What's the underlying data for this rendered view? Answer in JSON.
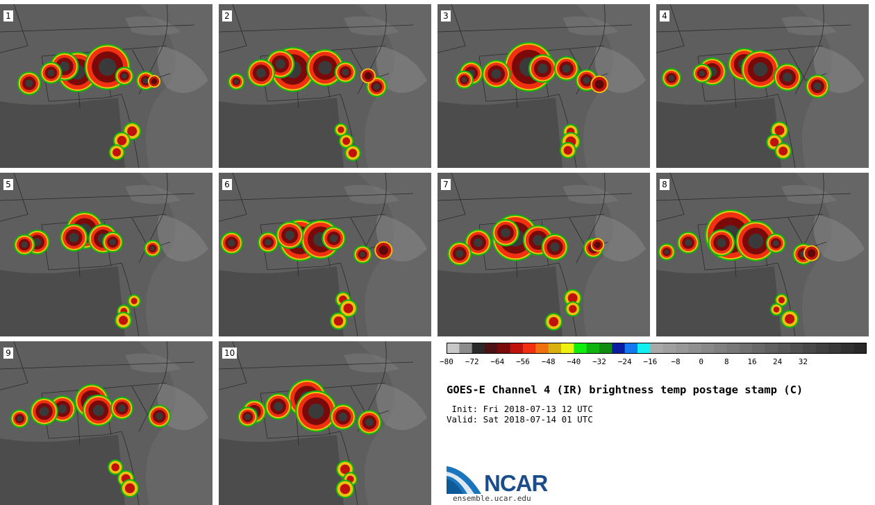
{
  "panels": [
    "1",
    "2",
    "3",
    "4",
    "5",
    "6",
    "7",
    "8",
    "9",
    "10"
  ],
  "colorbar": {
    "colors": [
      "#c8c8c8",
      "#8c8c8c",
      "#2a2a2a",
      "#4a1414",
      "#7a0a0a",
      "#c0120c",
      "#f03010",
      "#f07010",
      "#d8b010",
      "#f0f010",
      "#10ee10",
      "#10b410",
      "#108c10",
      "#0a1ca0",
      "#1478f0",
      "#10f0f0",
      "#a8a8a8",
      "#a0a0a0",
      "#989898",
      "#909090",
      "#888888",
      "#808080",
      "#787878",
      "#707070",
      "#686868",
      "#606060",
      "#585858",
      "#505050",
      "#484848",
      "#404040",
      "#383838",
      "#303030",
      "#282828"
    ],
    "tick_labels": [
      "−80",
      "−72",
      "−64",
      "−56",
      "−48",
      "−40",
      "−32",
      "−24",
      "−16",
      "−8",
      "0",
      "8",
      "16",
      "24",
      "32"
    ]
  },
  "title": "GOES-E Channel 4 (IR) brightness temp postage stamp (C)",
  "init_line": " Init: Fri 2018-07-13 12 UTC",
  "valid_line": "Valid: Sat 2018-07-14 01 UTC",
  "logo": {
    "text": "NCAR",
    "url": "ensemble.ucar.edu"
  }
}
